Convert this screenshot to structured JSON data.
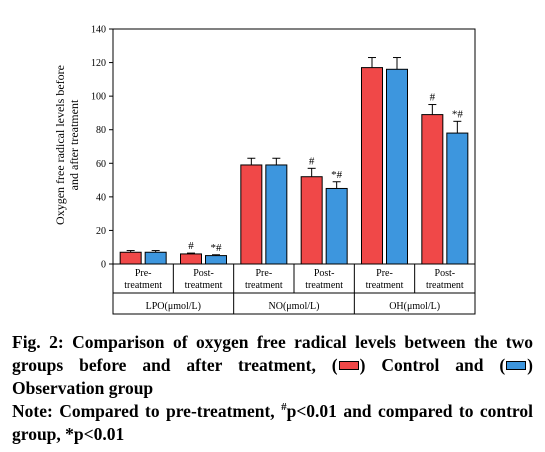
{
  "chart_data": {
    "type": "bar",
    "ylabel_line1": "Oxygen free radical levels before",
    "ylabel_line2": "and after treatment",
    "ylim": [
      0,
      140
    ],
    "yticks": [
      0,
      20,
      40,
      60,
      80,
      100,
      120,
      140
    ],
    "groups": [
      {
        "label": "LPO(μmol/L)",
        "subgroups": [
          {
            "label_line1": "Pre-",
            "label_line2": "treatment",
            "control": 7,
            "control_err": 1,
            "control_mark": "",
            "observation": 7,
            "observation_err": 1,
            "observation_mark": ""
          },
          {
            "label_line1": "Post-",
            "label_line2": "treatment",
            "control": 6,
            "control_err": 0.5,
            "control_mark": "#",
            "observation": 5,
            "observation_err": 0.5,
            "observation_mark": "*#"
          }
        ]
      },
      {
        "label": "NO(μmol/L)",
        "subgroups": [
          {
            "label_line1": "Pre-",
            "label_line2": "treatment",
            "control": 59,
            "control_err": 4,
            "control_mark": "",
            "observation": 59,
            "observation_err": 4,
            "observation_mark": ""
          },
          {
            "label_line1": "Post-",
            "label_line2": "treatment",
            "control": 52,
            "control_err": 5,
            "control_mark": "#",
            "observation": 45,
            "observation_err": 4,
            "observation_mark": "*#"
          }
        ]
      },
      {
        "label": "OH(μmol/L)",
        "subgroups": [
          {
            "label_line1": "Pre-",
            "label_line2": "treatment",
            "control": 117,
            "control_err": 6,
            "control_mark": "",
            "observation": 116,
            "observation_err": 7,
            "observation_mark": ""
          },
          {
            "label_line1": "Post-",
            "label_line2": "treatment",
            "control": 89,
            "control_err": 6,
            "control_mark": "#",
            "observation": 78,
            "observation_err": 7,
            "observation_mark": "*#"
          }
        ]
      }
    ],
    "series_colors": {
      "control": "#f04848",
      "observation": "#3d96de"
    }
  },
  "caption": {
    "fig_label": "Fig. 2: Comparison of oxygen free radical levels between the two groups before and after treatment, (",
    "control_text": ") Control and (",
    "observation_text": ") Observation group",
    "note_prefix": "Note: Compared to pre-treatment, ",
    "note_hash": "#",
    "note_rest": "p<0.01 and compared to control group, *p<0.01"
  }
}
